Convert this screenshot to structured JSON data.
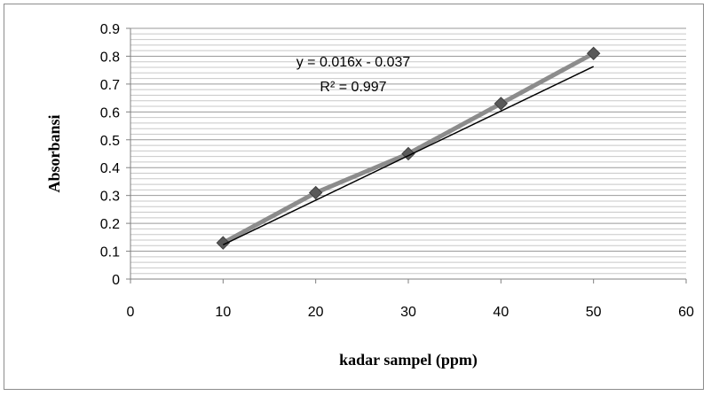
{
  "chart_data": {
    "type": "scatter",
    "title": "",
    "xlabel": "kadar sampel (ppm)",
    "ylabel": "Absorbansi",
    "xlim": [
      0,
      60
    ],
    "ylim": [
      0,
      0.9
    ],
    "x_ticks": [
      "0",
      "10",
      "20",
      "30",
      "40",
      "50",
      "60"
    ],
    "y_ticks": [
      "0",
      "0.1",
      "0.2",
      "0.3",
      "0.4",
      "0.5",
      "0.6",
      "0.7",
      "0.8",
      "0.9"
    ],
    "grid": "horizontal",
    "series": [
      {
        "x": [
          10,
          20,
          30,
          40,
          50
        ],
        "values": [
          0.13,
          0.31,
          0.45,
          0.63,
          0.81
        ],
        "marker": "diamond",
        "color": "#595959"
      }
    ],
    "trendline": {
      "slope": 0.016,
      "intercept": -0.037,
      "color": "#000000",
      "equation": "y = 0.016x - 0.037",
      "r_squared": "R² = 0.997"
    }
  }
}
